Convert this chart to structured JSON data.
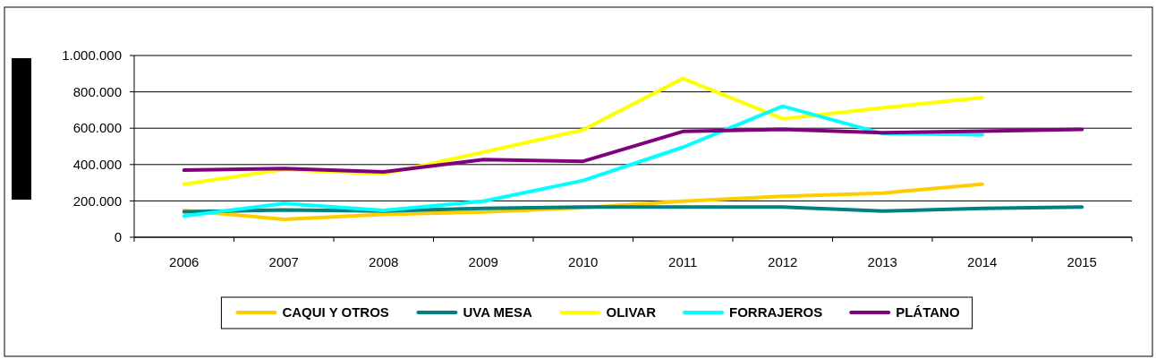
{
  "chart_data": {
    "type": "line",
    "categories": [
      "2006",
      "2007",
      "2008",
      "2009",
      "2010",
      "2011",
      "2012",
      "2013",
      "2014",
      "2015"
    ],
    "ylim": [
      0,
      1000000
    ],
    "yticks": [
      {
        "value": 0,
        "label": "0"
      },
      {
        "value": 200000,
        "label": "200.000"
      },
      {
        "value": 400000,
        "label": "400.000"
      },
      {
        "value": 600000,
        "label": "600.000"
      },
      {
        "value": 800000,
        "label": "800.000"
      },
      {
        "value": 1000000,
        "label": "1.000.000"
      }
    ],
    "grid": "y",
    "legend": "bottom",
    "marker": "none",
    "line_style": "solid",
    "series": [
      {
        "name": "CAQUI Y OTROS",
        "color": "#ffcc00",
        "values": [
          148000,
          99000,
          126000,
          139000,
          162000,
          198000,
          225000,
          243000,
          292000,
          null
        ]
      },
      {
        "name": "UVA MESA",
        "color": "#008080",
        "values": [
          140000,
          150000,
          144000,
          159000,
          166000,
          166000,
          166000,
          144000,
          159000,
          166000
        ]
      },
      {
        "name": "OLIVAR",
        "color": "#ffff00",
        "values": [
          292000,
          373000,
          348000,
          468000,
          591000,
          874000,
          652000,
          712000,
          769000,
          null
        ]
      },
      {
        "name": "FORRAJEROS",
        "color": "#00ffff",
        "values": [
          117000,
          186000,
          148000,
          198000,
          312000,
          495000,
          721000,
          571000,
          564000,
          null
        ]
      },
      {
        "name": "PLÁTANO",
        "color": "#800080",
        "values": [
          369000,
          378000,
          360000,
          427000,
          418000,
          582000,
          593000,
          575000,
          584000,
          593000
        ]
      }
    ]
  }
}
